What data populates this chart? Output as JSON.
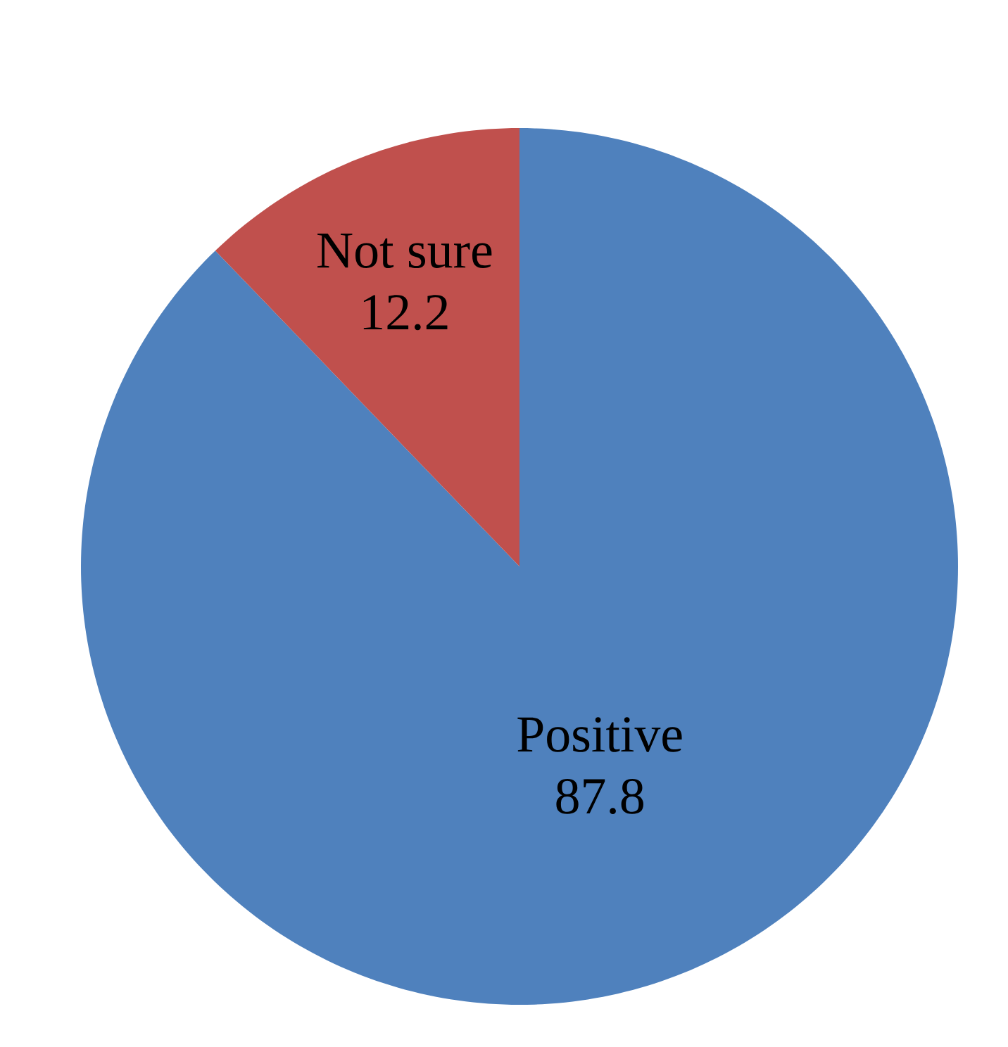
{
  "chart_data": {
    "type": "pie",
    "categories": [
      "Positive",
      "Not sure"
    ],
    "values": [
      87.8,
      12.2
    ],
    "colors": [
      "#4f81bd",
      "#c0504d"
    ],
    "data_labels": true
  }
}
